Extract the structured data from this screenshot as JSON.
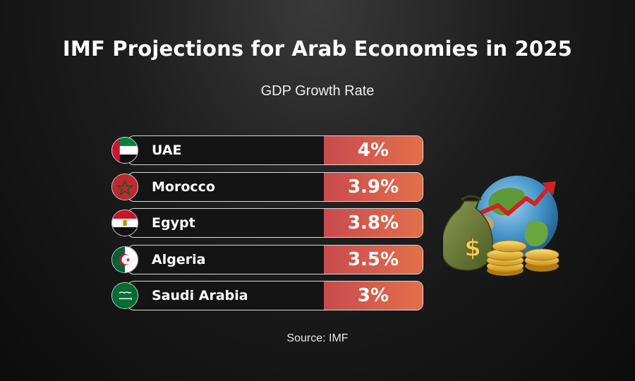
{
  "title": "IMF Projections for Arab Economies in 2025",
  "subtitle": "GDP Growth Rate",
  "source": "Source: IMF",
  "colors": {
    "value_fill_start": "#c84a4d",
    "value_fill_end": "#e2704b",
    "row_border": "#d9d9d9",
    "background": "#1a1a1a"
  },
  "chart_data": {
    "type": "bar",
    "title": "IMF Projections for Arab Economies in 2025",
    "subtitle": "GDP Growth Rate",
    "categories": [
      "UAE",
      "Morocco",
      "Egypt",
      "Algeria",
      "Saudi Arabia"
    ],
    "values": [
      4,
      3.9,
      3.8,
      3.5,
      3
    ],
    "value_labels": [
      "4%",
      "3.9%",
      "3.8%",
      "3.5%",
      "3%"
    ],
    "flags": [
      "uae-flag",
      "morocco-flag",
      "egypt-flag",
      "algeria-flag",
      "saudi-arabia-flag"
    ],
    "unit": "%",
    "legend": "none",
    "grid": false
  },
  "illustration": {
    "icons": [
      "globe-icon",
      "money-bag-icon",
      "dollar-sign-icon",
      "gold-coins-icon",
      "rising-arrow-icon"
    ]
  }
}
